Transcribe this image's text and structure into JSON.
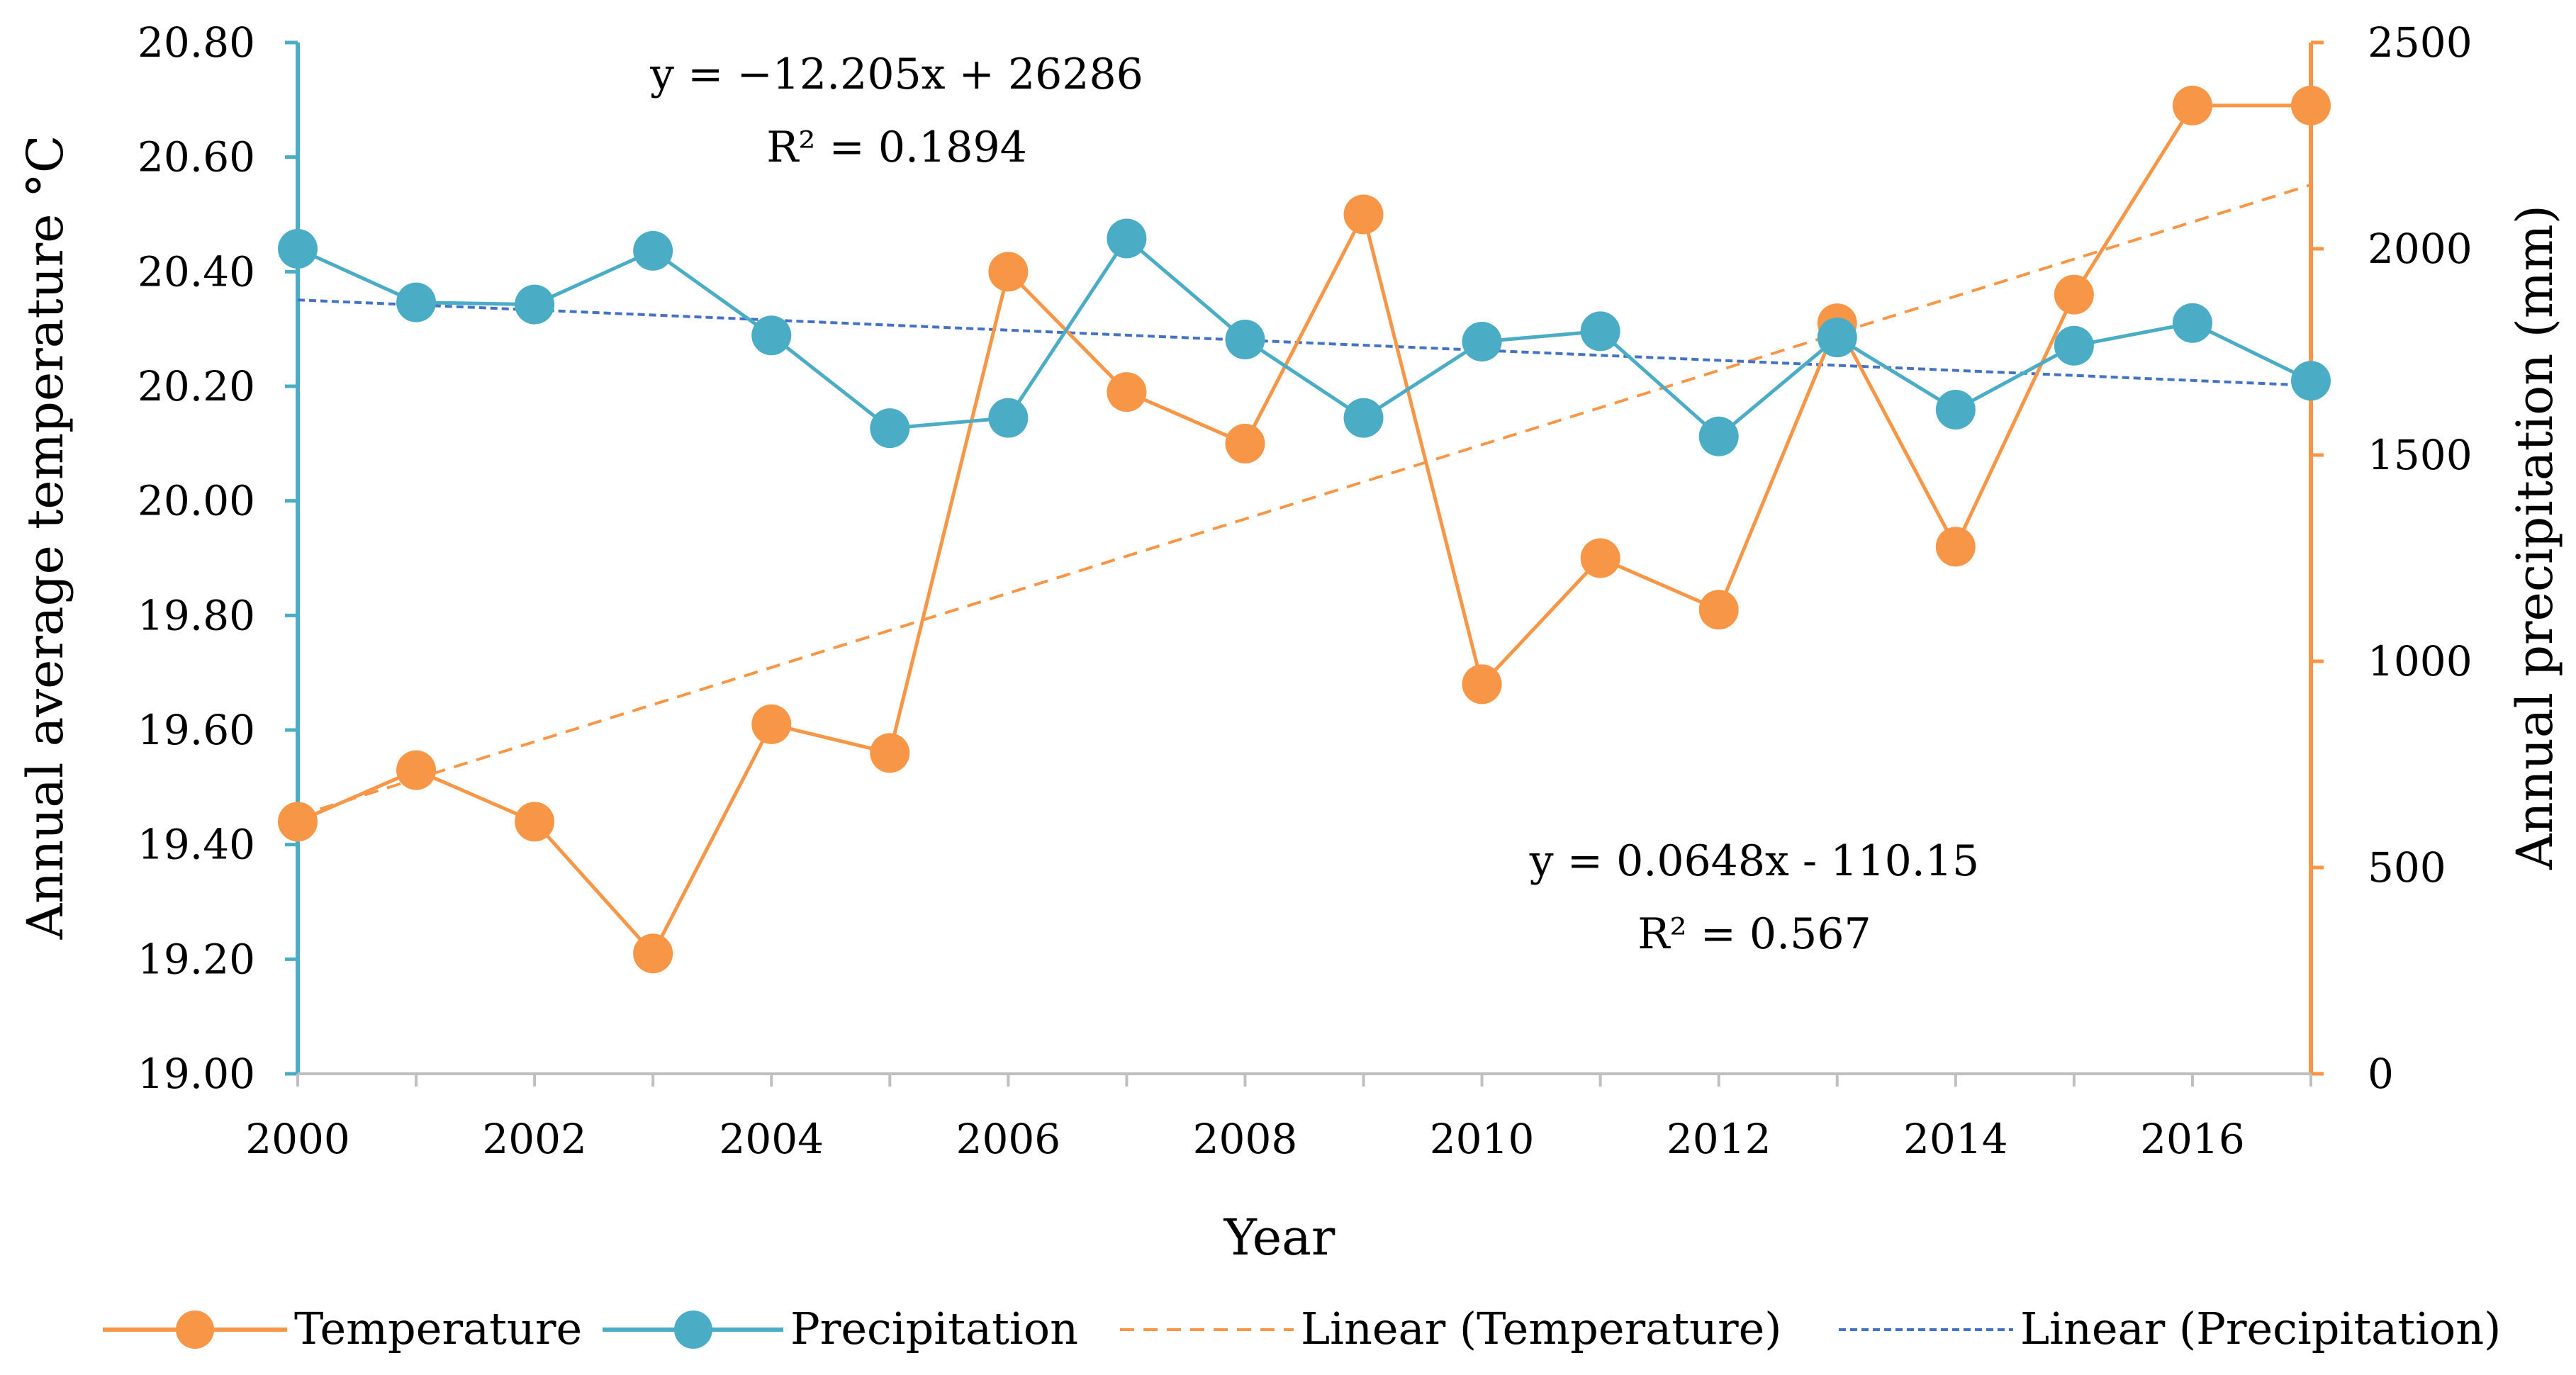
{
  "chart_data": {
    "type": "line",
    "x": [
      2000,
      2001,
      2002,
      2003,
      2004,
      2005,
      2006,
      2007,
      2008,
      2009,
      2010,
      2011,
      2012,
      2013,
      2014,
      2015,
      2016,
      2017
    ],
    "xlim": [
      2000,
      2017
    ],
    "x_tick_values": [
      2000,
      2002,
      2004,
      2006,
      2008,
      2010,
      2012,
      2014,
      2016
    ],
    "x_tick_labels": [
      "2000",
      "2002",
      "2004",
      "2006",
      "2008",
      "2010",
      "2012",
      "2014",
      "2016"
    ],
    "xlabel": "Year",
    "y_left": {
      "label": "Annual average temperature °C",
      "range": [
        19.0,
        20.8
      ],
      "ticks": [
        19.0,
        19.2,
        19.4,
        19.6,
        19.8,
        20.0,
        20.2,
        20.4,
        20.6,
        20.8
      ],
      "tick_labels": [
        "19.00",
        "19.20",
        "19.40",
        "19.60",
        "19.80",
        "20.00",
        "20.20",
        "20.40",
        "20.60",
        "20.80"
      ],
      "color": "#4bacc6"
    },
    "y_right": {
      "label": "Annual precipitation (mm)",
      "range": [
        0,
        2500
      ],
      "ticks": [
        0,
        500,
        1000,
        1500,
        2000,
        2500
      ],
      "tick_labels": [
        "0",
        "500",
        "1000",
        "1500",
        "2000",
        "2500"
      ],
      "color": "#f79646"
    },
    "series": [
      {
        "name": "Temperature",
        "key": "temperature",
        "axis": "left",
        "color": "#f79646",
        "values": [
          19.44,
          19.53,
          19.44,
          19.21,
          19.61,
          19.56,
          20.4,
          20.19,
          20.1,
          20.5,
          19.68,
          19.9,
          19.81,
          20.31,
          19.92,
          20.36,
          20.69,
          20.69
        ]
      },
      {
        "name": "Precipitation",
        "key": "precipitation",
        "axis": "right",
        "color": "#4bacc6",
        "values": [
          2000,
          1870,
          1865,
          1995,
          1790,
          1565,
          1590,
          2025,
          1780,
          1590,
          1775,
          1800,
          1545,
          1785,
          1610,
          1765,
          1820,
          1680
        ]
      }
    ],
    "trendlines": [
      {
        "name": "Linear (Temperature)",
        "key": "temperature_trend",
        "axis": "left",
        "color": "#f79646",
        "slope": 0.0648,
        "intercept": -110.15,
        "equation": "y = 0.0648x - 110.15",
        "r2": "R² = 0.567"
      },
      {
        "name": "Linear (Precipitation)",
        "key": "precipitation_trend",
        "axis": "right",
        "color": "#4472c4",
        "slope": -12.205,
        "intercept": 26286,
        "equation": "y = −12.205x + 26286",
        "r2": "R² = 0.1894"
      }
    ],
    "legend": {
      "placement": "bottom",
      "entries": [
        "Temperature",
        "Precipitation",
        "Linear (Temperature)",
        "Linear (Precipitation)"
      ]
    },
    "grid": false
  }
}
